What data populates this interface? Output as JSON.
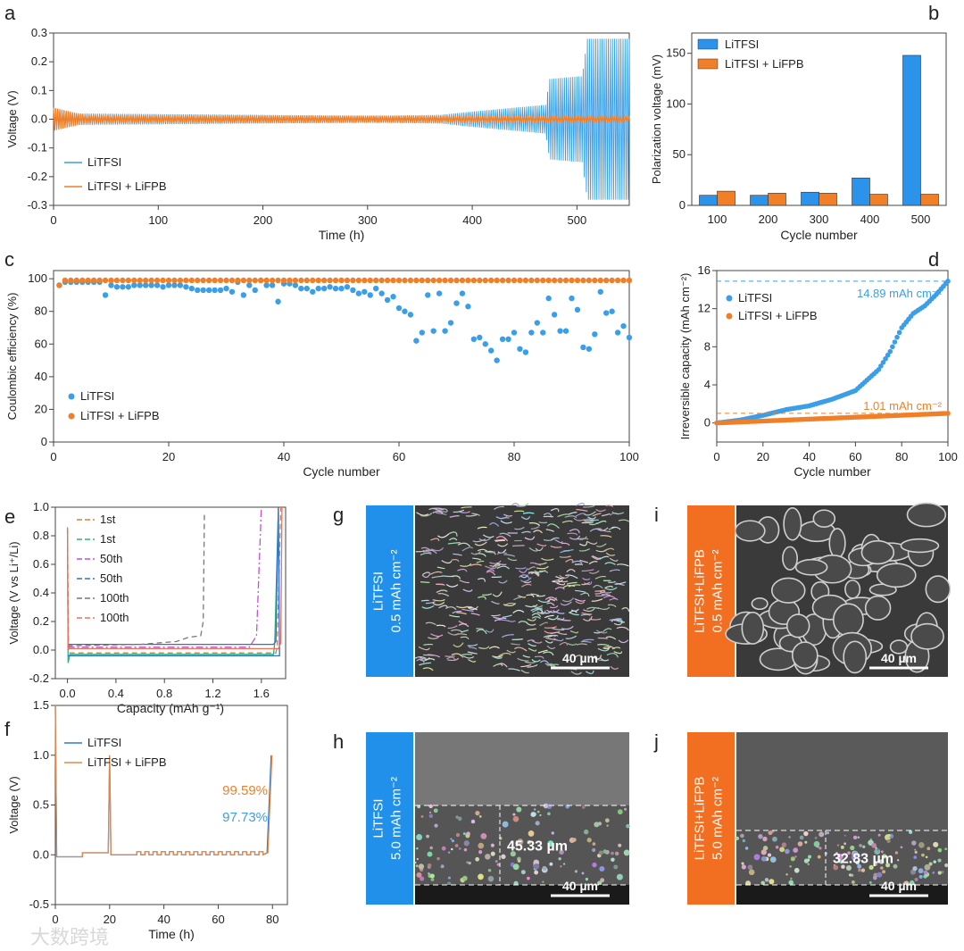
{
  "colors": {
    "blue": "#3a9ee8",
    "orange": "#f07f27",
    "bar_blue": "#2b93ea",
    "label_blue": "#2190ea",
    "label_orange": "#f26f21"
  },
  "panel_letters": [
    "a",
    "b",
    "c",
    "d",
    "e",
    "f",
    "g",
    "h",
    "i",
    "j"
  ],
  "watermark": "大数跨境",
  "chart_data": [
    {
      "id": "a",
      "type": "line",
      "xlabel": "Time (h)",
      "ylabel": "Voltage (V)",
      "xlim": [
        0,
        550
      ],
      "ylim": [
        -0.3,
        0.3
      ],
      "xticks": [
        0,
        100,
        200,
        300,
        400,
        500
      ],
      "yticks": [
        -0.3,
        -0.2,
        -0.1,
        0.0,
        0.1,
        0.2,
        0.3
      ],
      "ytick_labels": [
        "-0.3",
        "-0.2",
        "-0.1",
        "0.0",
        "0.1",
        "0.2",
        "0.3"
      ],
      "legend": "bottom-left",
      "series": [
        {
          "name": "LiTFSI",
          "color": "#3a9ee8",
          "period_h": 2,
          "amplitude_envelope": [
            [
              0,
              0.04
            ],
            [
              20,
              0.02
            ],
            [
              300,
              0.012
            ],
            [
              370,
              0.015
            ],
            [
              395,
              0.025
            ],
            [
              470,
              0.05
            ],
            [
              474,
              0.14
            ],
            [
              505,
              0.15
            ],
            [
              510,
              0.28
            ],
            [
              550,
              0.28
            ]
          ]
        },
        {
          "name": "LiTFSI + LiFPB",
          "color": "#f07f27",
          "period_h": 2,
          "amplitude_envelope": [
            [
              0,
              0.04
            ],
            [
              30,
              0.015
            ],
            [
              550,
              0.01
            ]
          ]
        }
      ]
    },
    {
      "id": "b",
      "type": "bar",
      "xlabel": "Cycle number",
      "ylabel": "Polarization voltage (mV)",
      "categories": [
        "100",
        "200",
        "300",
        "400",
        "500"
      ],
      "ylim": [
        0,
        170
      ],
      "yticks": [
        0,
        50,
        100,
        150
      ],
      "legend": "top-left",
      "series": [
        {
          "name": "LiTFSI",
          "color": "#2b93ea",
          "values": [
            10,
            10,
            13,
            27,
            148
          ]
        },
        {
          "name": "LiTFSI + LiFPB",
          "color": "#f07f27",
          "values": [
            14,
            12,
            12,
            11,
            11
          ]
        }
      ]
    },
    {
      "id": "c",
      "type": "scatter",
      "xlabel": "Cycle number",
      "ylabel": "Coulombic efficiency (%)",
      "xlim": [
        0,
        100
      ],
      "ylim": [
        0,
        105
      ],
      "xticks": [
        0,
        20,
        40,
        60,
        80,
        100
      ],
      "yticks": [
        0,
        20,
        40,
        60,
        80,
        100
      ],
      "legend": "bottom-left",
      "series": [
        {
          "name": "LiTFSI",
          "color": "#3a9ee8",
          "values": [
            96,
            98,
            98,
            98,
            98,
            98,
            98,
            98,
            90,
            96,
            95,
            95,
            95,
            96,
            96,
            96,
            96,
            96,
            95,
            96,
            96,
            96,
            95,
            94,
            93,
            93,
            93,
            93,
            93,
            94,
            92,
            98,
            90,
            96,
            93,
            99,
            96,
            96,
            86,
            97,
            97,
            96,
            94,
            94,
            92,
            94,
            94,
            95,
            94,
            94,
            95,
            93,
            91,
            92,
            90,
            94,
            91,
            87,
            89,
            82,
            80,
            78,
            62,
            67,
            90,
            68,
            91,
            68,
            73,
            85,
            91,
            83,
            63,
            64,
            60,
            56,
            50,
            63,
            63,
            67,
            57,
            55,
            67,
            73,
            67,
            88,
            78,
            68,
            68,
            88,
            81,
            58,
            57,
            66,
            92,
            79,
            80,
            67,
            71,
            64
          ]
        },
        {
          "name": "LiTFSI + LiFPB",
          "color": "#f07f27",
          "first_value": 96,
          "steady_value": 99,
          "n": 100
        }
      ]
    },
    {
      "id": "d",
      "type": "scatter",
      "xlabel": "Cycle number",
      "ylabel": "Irreversible capacity (mAh cm⁻²)",
      "xlim": [
        0,
        100
      ],
      "ylim": [
        -2,
        16
      ],
      "xticks": [
        0,
        20,
        40,
        60,
        80,
        100
      ],
      "yticks": [
        0,
        4,
        8,
        12,
        16
      ],
      "legend": "top-left",
      "series": [
        {
          "name": "LiTFSI",
          "color": "#3a9ee8",
          "points": [
            [
              0,
              0
            ],
            [
              10,
              0.3
            ],
            [
              20,
              0.8
            ],
            [
              30,
              1.4
            ],
            [
              40,
              1.8
            ],
            [
              50,
              2.5
            ],
            [
              60,
              3.4
            ],
            [
              65,
              4.5
            ],
            [
              70,
              5.6
            ],
            [
              75,
              7.5
            ],
            [
              80,
              10
            ],
            [
              85,
              11.5
            ],
            [
              90,
              12.3
            ],
            [
              95,
              13.5
            ],
            [
              100,
              14.89
            ]
          ],
          "final_label": "14.89 mAh cm⁻²",
          "final_value": 14.89
        },
        {
          "name": "LiTFSI + LiFPB",
          "color": "#f07f27",
          "points": [
            [
              0,
              0
            ],
            [
              100,
              1.01
            ]
          ],
          "final_label": "1.01 mAh cm⁻²",
          "final_value": 1.01
        }
      ]
    },
    {
      "id": "e",
      "type": "line",
      "xlabel": "Capacity (mAh g⁻¹)",
      "ylabel": "Voltage (V vs Li⁺/Li)",
      "xlim": [
        -0.1,
        1.8
      ],
      "ylim": [
        -0.2,
        1.0
      ],
      "xticks": [
        0.0,
        0.4,
        0.8,
        1.2,
        1.6
      ],
      "xtick_labels": [
        "0.0",
        "0.4",
        "0.8",
        "1.2",
        "1.6"
      ],
      "yticks": [
        -0.2,
        0.0,
        0.2,
        0.4,
        0.6,
        0.8,
        1.0
      ],
      "ytick_labels": [
        "-0.2",
        "0.0",
        "0.2",
        "0.4",
        "0.6",
        "0.8",
        "1.0"
      ],
      "legend": "top-left",
      "series": [
        {
          "name": "1st",
          "color": "#e07b39",
          "dash": "6,4",
          "points": [
            [
              0,
              0.85
            ],
            [
              0.01,
              -0.02
            ],
            [
              1.72,
              -0.02
            ],
            [
              1.73,
              0.02
            ],
            [
              1.76,
              1.0
            ]
          ]
        },
        {
          "name": "1st",
          "color": "#2bb37e",
          "dash": "",
          "points": [
            [
              0,
              0.84
            ],
            [
              0.005,
              -0.09
            ],
            [
              0.02,
              -0.03
            ],
            [
              1.7,
              -0.03
            ],
            [
              1.71,
              0.05
            ],
            [
              1.74,
              1.0
            ]
          ]
        },
        {
          "name": "50th",
          "color": "#c34fd6",
          "dash": "8,3,2,3",
          "points": [
            [
              0,
              0.02
            ],
            [
              1.5,
              0.02
            ],
            [
              1.56,
              0.1
            ],
            [
              1.6,
              1.0
            ]
          ]
        },
        {
          "name": "50th",
          "color": "#2f6fd6",
          "dash": "",
          "points": [
            [
              0,
              0.04
            ],
            [
              1.7,
              0.04
            ],
            [
              1.72,
              0.06
            ],
            [
              1.74,
              1.0
            ],
            [
              1.75,
              -0.04
            ],
            [
              0,
              -0.04
            ]
          ]
        },
        {
          "name": "100th",
          "color": "#777777",
          "dash": "6,4",
          "points": [
            [
              0,
              0.03
            ],
            [
              0.6,
              0.04
            ],
            [
              0.9,
              0.06
            ],
            [
              1.0,
              0.09
            ],
            [
              1.1,
              0.1
            ],
            [
              1.12,
              0.2
            ],
            [
              1.13,
              0.96
            ]
          ]
        },
        {
          "name": "100th",
          "color": "#f0705a",
          "dash": "",
          "points": [
            [
              0,
              0.86
            ],
            [
              0.005,
              0.01
            ],
            [
              1.74,
              0.01
            ],
            [
              1.76,
              0.05
            ],
            [
              1.77,
              1.0
            ]
          ]
        }
      ]
    },
    {
      "id": "f",
      "type": "line",
      "xlabel": "Time (h)",
      "ylabel": "Voltage (V)",
      "xlim": [
        0,
        85.5
      ],
      "ylim": [
        -0.5,
        1.5
      ],
      "xticks": [
        0,
        20,
        40,
        60,
        80
      ],
      "yticks": [
        -0.5,
        0.0,
        0.5,
        1.0,
        1.5
      ],
      "ytick_labels": [
        "-0.5",
        "0.0",
        "0.5",
        "1.0",
        "1.5"
      ],
      "legend": "top-left",
      "annotations": [
        {
          "text": "99.59%",
          "color": "#f07f27"
        },
        {
          "text": "97.73%",
          "color": "#3a9ee8"
        }
      ],
      "series": [
        {
          "name": "LiTFSI",
          "color": "#2a7fd0",
          "final_rise_h": 79.5
        },
        {
          "name": "LiTFSI + LiFPB",
          "color": "#e0884a",
          "final_rise_h": 79.8
        }
      ]
    }
  ],
  "sem_panels": [
    {
      "id": "g",
      "label_lines": [
        "LiTFSI",
        "0.5 mAh cm⁻²"
      ],
      "scale": "40 µm",
      "color": "#2190ea",
      "style": "dendrite"
    },
    {
      "id": "i",
      "label_lines": [
        "LiTFSI+LiFPB",
        "0.5 mAh cm⁻²"
      ],
      "scale": "40 µm",
      "color": "#f26f21",
      "style": "nodular"
    },
    {
      "id": "h",
      "label_lines": [
        "LiTFSI",
        "5.0 mAh cm⁻²"
      ],
      "scale": "40 µm",
      "color": "#2190ea",
      "style": "cross",
      "thickness": "45.33 µm"
    },
    {
      "id": "j",
      "label_lines": [
        "LiTFSI+LiFPB",
        "5.0 mAh cm⁻²"
      ],
      "scale": "40 µm",
      "color": "#f26f21",
      "style": "cross",
      "thickness": "32.83 µm"
    }
  ]
}
